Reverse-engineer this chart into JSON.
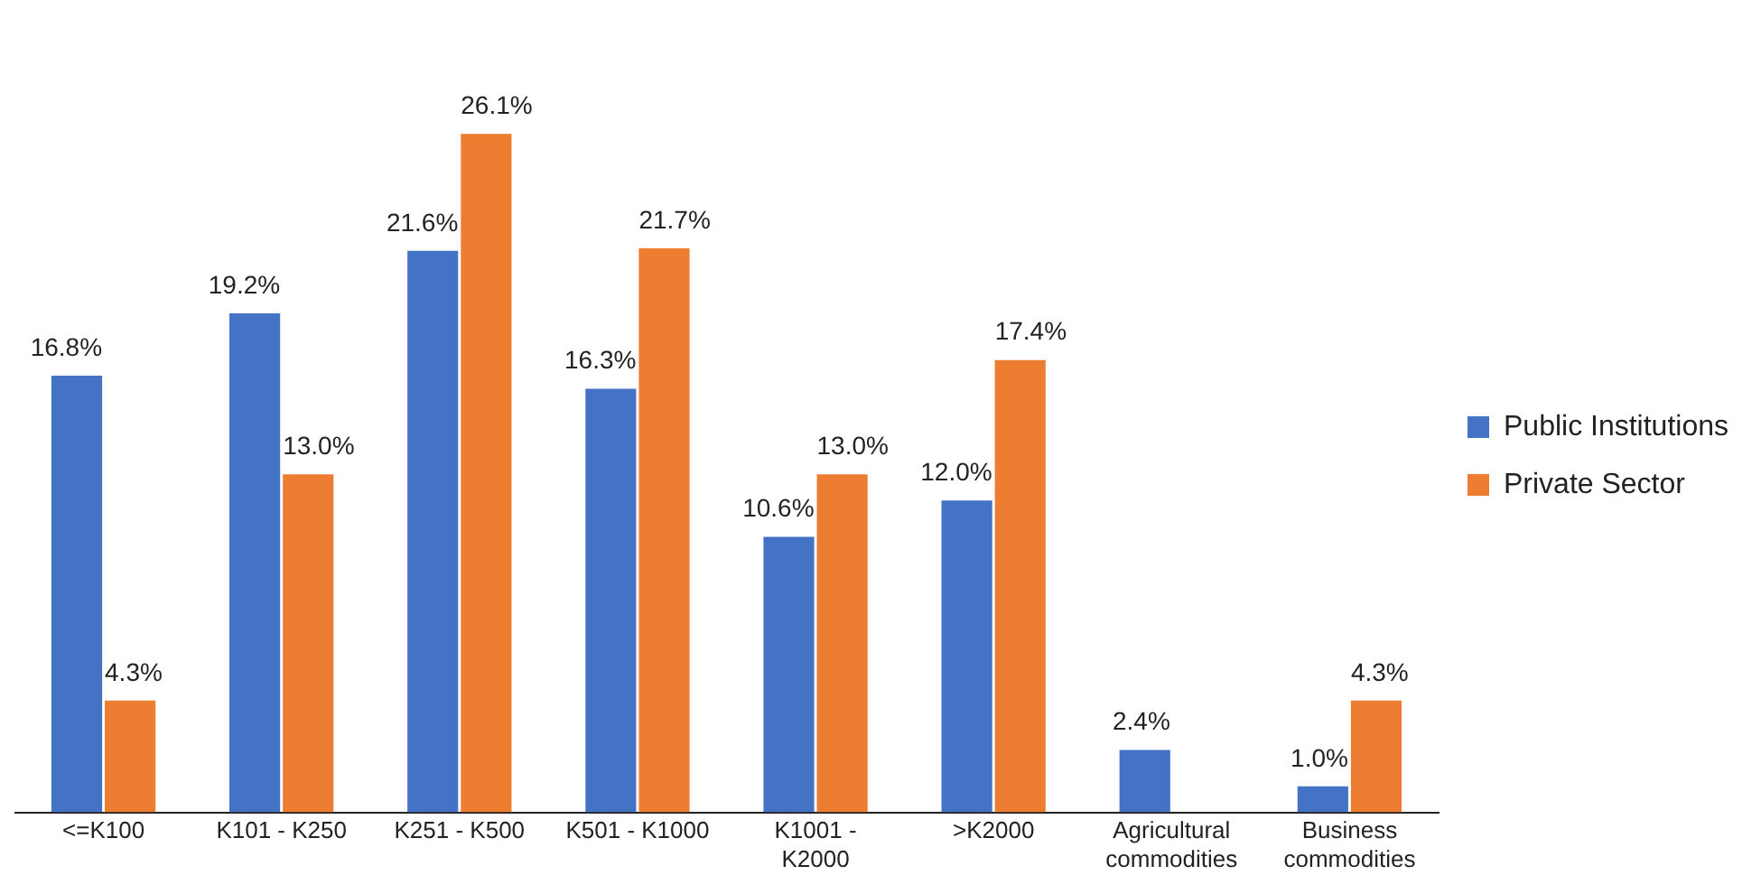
{
  "chart_data": {
    "type": "bar",
    "categories": [
      "<=K100",
      "K101 - K250",
      "K251 - K500",
      "K501 - K1000",
      "K1001 - K2000",
      ">K2000",
      "Agricultural commodities",
      "Business commodities"
    ],
    "series": [
      {
        "name": "Public Institutions",
        "color": "#4472c4",
        "values": [
          16.8,
          19.2,
          21.6,
          16.3,
          10.6,
          12.0,
          2.4,
          1.0
        ],
        "value_labels": [
          "16.8%",
          "19.2%",
          "21.6%",
          "16.3%",
          "10.6%",
          "12.0%",
          "2.4%",
          "1.0%"
        ]
      },
      {
        "name": "Private Sector",
        "color": "#ed7d31",
        "values": [
          4.3,
          13.0,
          26.1,
          21.7,
          13.0,
          17.4,
          null,
          4.3
        ],
        "value_labels": [
          "4.3%",
          "13.0%",
          "26.1%",
          "21.7%",
          "13.0%",
          "17.4%",
          null,
          "4.3%"
        ]
      }
    ],
    "legend": "right",
    "grid": false
  }
}
